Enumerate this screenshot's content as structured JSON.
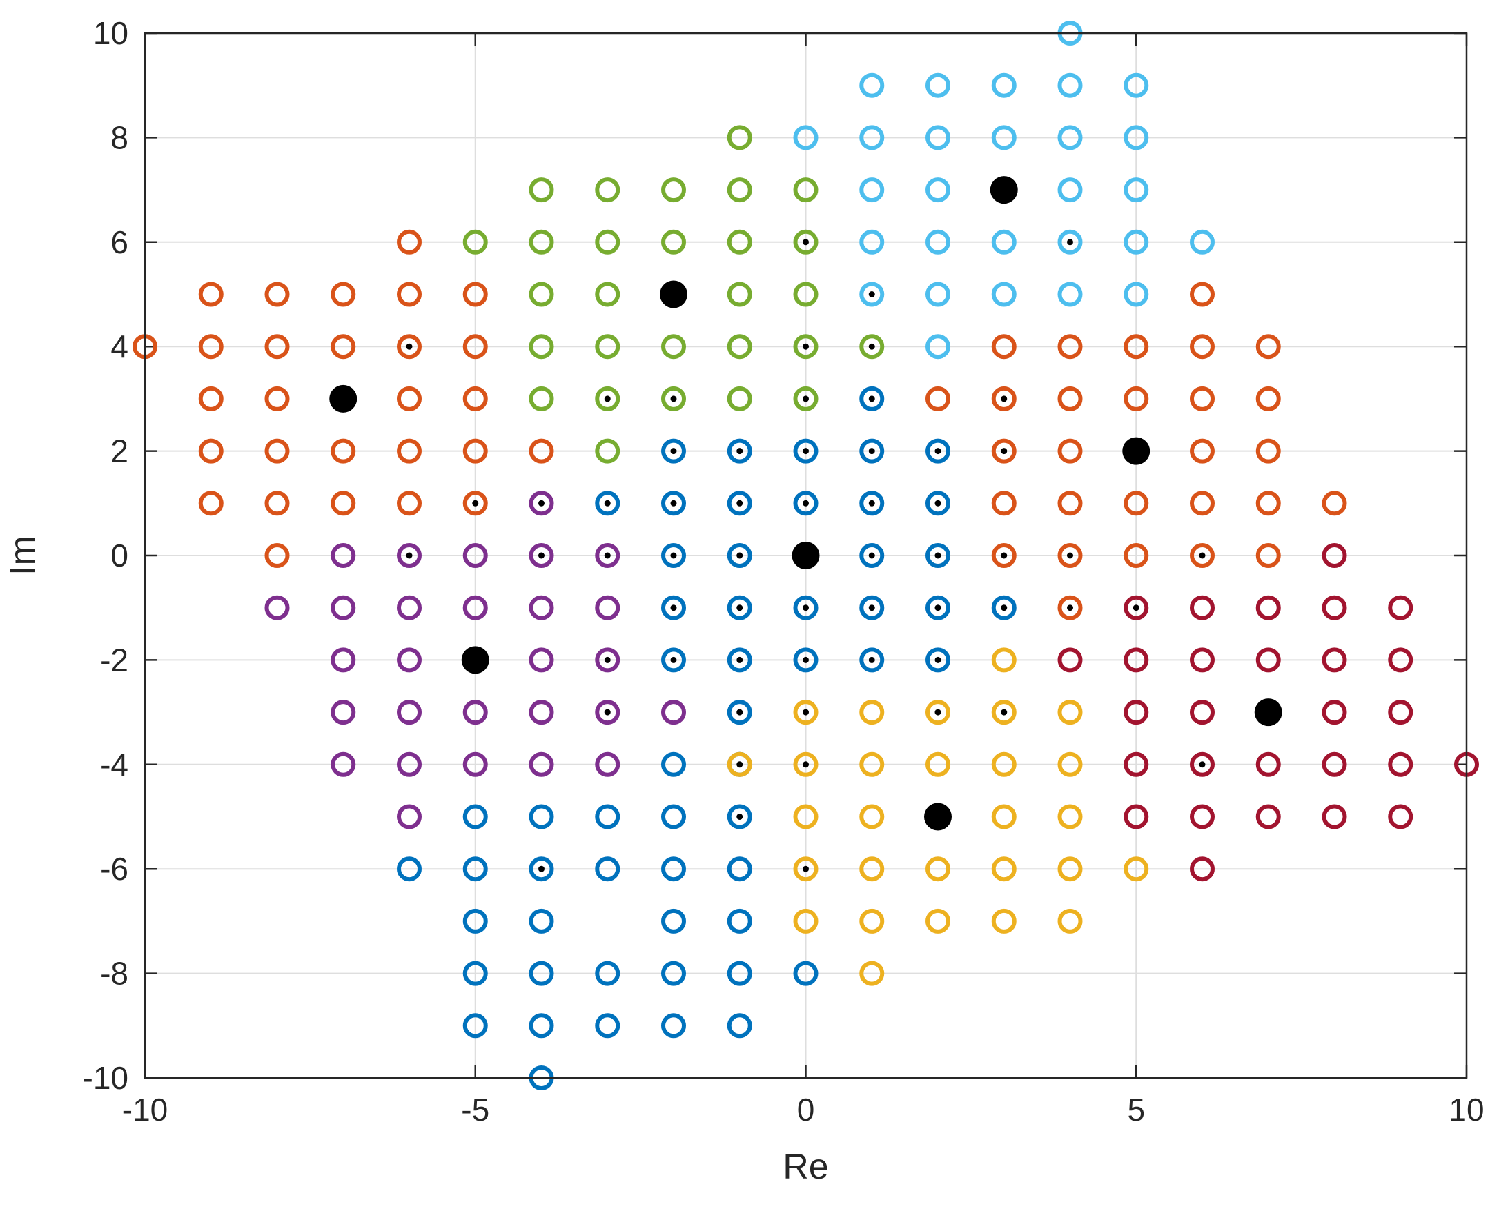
{
  "chart_data": {
    "type": "scatter",
    "title": "",
    "xlabel": "Re",
    "ylabel": "Im",
    "xlim": [
      -10,
      10
    ],
    "ylim": [
      -10,
      10
    ],
    "xticks": [
      -10,
      -5,
      0,
      5,
      10
    ],
    "yticks": [
      -10,
      -8,
      -6,
      -4,
      -2,
      0,
      2,
      4,
      6,
      8,
      10
    ],
    "grid": true,
    "marker_style": "open circle",
    "center_dot_meaning": "points marked with a small black center dot",
    "series": [
      {
        "name": "blue region",
        "color": "#0072bd",
        "points": [
          [
            0,
            2
          ],
          [
            0,
            1
          ],
          [
            0,
            -1
          ],
          [
            0,
            -2
          ],
          [
            1,
            3
          ],
          [
            1,
            2
          ],
          [
            1,
            1
          ],
          [
            1,
            0
          ],
          [
            1,
            -1
          ],
          [
            1,
            -2
          ],
          [
            2,
            2
          ],
          [
            2,
            1
          ],
          [
            2,
            0
          ],
          [
            2,
            -1
          ],
          [
            2,
            -2
          ],
          [
            3,
            -1
          ],
          [
            -1,
            2
          ],
          [
            -1,
            1
          ],
          [
            -1,
            0
          ],
          [
            -1,
            -1
          ],
          [
            -1,
            -2
          ],
          [
            -1,
            -3
          ],
          [
            -1,
            -4
          ],
          [
            -1,
            -5
          ],
          [
            -1,
            -6
          ],
          [
            -1,
            -7
          ],
          [
            -1,
            -8
          ],
          [
            -1,
            -9
          ],
          [
            -2,
            2
          ],
          [
            -2,
            1
          ],
          [
            -2,
            0
          ],
          [
            -2,
            -1
          ],
          [
            -2,
            -2
          ],
          [
            -2,
            -4
          ],
          [
            -2,
            -5
          ],
          [
            -2,
            -6
          ],
          [
            -2,
            -7
          ],
          [
            -2,
            -8
          ],
          [
            -2,
            -9
          ],
          [
            -3,
            1
          ],
          [
            -3,
            -5
          ],
          [
            -3,
            -6
          ],
          [
            -3,
            -8
          ],
          [
            -3,
            -9
          ],
          [
            -4,
            -5
          ],
          [
            -4,
            -6
          ],
          [
            -4,
            -7
          ],
          [
            -4,
            -8
          ],
          [
            -4,
            -9
          ],
          [
            -4,
            -10
          ],
          [
            -5,
            -5
          ],
          [
            -5,
            -6
          ],
          [
            -5,
            -7
          ],
          [
            -5,
            -8
          ],
          [
            -5,
            -9
          ],
          [
            -6,
            -6
          ],
          [
            0,
            -8
          ]
        ],
        "dotted": [
          [
            0,
            2
          ],
          [
            0,
            1
          ],
          [
            0,
            -1
          ],
          [
            0,
            -2
          ],
          [
            1,
            3
          ],
          [
            1,
            2
          ],
          [
            1,
            1
          ],
          [
            1,
            0
          ],
          [
            1,
            -1
          ],
          [
            1,
            -2
          ],
          [
            2,
            2
          ],
          [
            2,
            1
          ],
          [
            2,
            0
          ],
          [
            2,
            -1
          ],
          [
            2,
            -2
          ],
          [
            3,
            -1
          ],
          [
            -1,
            2
          ],
          [
            -1,
            1
          ],
          [
            -1,
            0
          ],
          [
            -1,
            -1
          ],
          [
            -1,
            -2
          ],
          [
            -1,
            -3
          ],
          [
            -1,
            -5
          ],
          [
            -2,
            2
          ],
          [
            -2,
            1
          ],
          [
            -2,
            0
          ],
          [
            -2,
            -1
          ],
          [
            -2,
            -2
          ],
          [
            -3,
            1
          ],
          [
            -4,
            -6
          ]
        ],
        "center": [
          0,
          0
        ]
      },
      {
        "name": "orange region",
        "color": "#d95319",
        "points": [
          [
            -10,
            4
          ],
          [
            -9,
            5
          ],
          [
            -9,
            4
          ],
          [
            -9,
            3
          ],
          [
            -9,
            2
          ],
          [
            -9,
            1
          ],
          [
            -8,
            5
          ],
          [
            -8,
            4
          ],
          [
            -8,
            3
          ],
          [
            -8,
            2
          ],
          [
            -8,
            1
          ],
          [
            -8,
            0
          ],
          [
            -7,
            5
          ],
          [
            -7,
            4
          ],
          [
            -7,
            2
          ],
          [
            -7,
            1
          ],
          [
            -6,
            6
          ],
          [
            -6,
            5
          ],
          [
            -6,
            4
          ],
          [
            -6,
            3
          ],
          [
            -6,
            2
          ],
          [
            -6,
            1
          ],
          [
            -5,
            5
          ],
          [
            -5,
            4
          ],
          [
            -5,
            3
          ],
          [
            -5,
            2
          ],
          [
            -5,
            1
          ],
          [
            -4,
            2
          ],
          [
            2,
            3
          ],
          [
            3,
            4
          ],
          [
            3,
            3
          ],
          [
            3,
            2
          ],
          [
            3,
            1
          ],
          [
            3,
            0
          ],
          [
            4,
            4
          ],
          [
            4,
            3
          ],
          [
            4,
            2
          ],
          [
            4,
            1
          ],
          [
            4,
            0
          ],
          [
            4,
            -1
          ],
          [
            5,
            4
          ],
          [
            5,
            3
          ],
          [
            5,
            1
          ],
          [
            5,
            0
          ],
          [
            6,
            5
          ],
          [
            6,
            4
          ],
          [
            6,
            3
          ],
          [
            6,
            2
          ],
          [
            6,
            1
          ],
          [
            6,
            0
          ],
          [
            7,
            4
          ],
          [
            7,
            3
          ],
          [
            7,
            2
          ],
          [
            7,
            1
          ],
          [
            7,
            0
          ],
          [
            8,
            1
          ]
        ],
        "dotted": [
          [
            -6,
            4
          ],
          [
            -5,
            1
          ],
          [
            3,
            3
          ],
          [
            3,
            2
          ],
          [
            3,
            0
          ],
          [
            4,
            0
          ],
          [
            4,
            -1
          ],
          [
            6,
            0
          ]
        ],
        "centers": [
          [
            -7,
            3
          ],
          [
            5,
            2
          ]
        ]
      },
      {
        "name": "yellow region",
        "color": "#edb120",
        "points": [
          [
            0,
            -3
          ],
          [
            0,
            -4
          ],
          [
            0,
            -5
          ],
          [
            0,
            -6
          ],
          [
            0,
            -7
          ],
          [
            1,
            -3
          ],
          [
            1,
            -4
          ],
          [
            1,
            -5
          ],
          [
            1,
            -6
          ],
          [
            1,
            -7
          ],
          [
            1,
            -8
          ],
          [
            2,
            -3
          ],
          [
            2,
            -4
          ],
          [
            2,
            -6
          ],
          [
            2,
            -7
          ],
          [
            3,
            -2
          ],
          [
            3,
            -3
          ],
          [
            3,
            -4
          ],
          [
            3,
            -5
          ],
          [
            3,
            -6
          ],
          [
            3,
            -7
          ],
          [
            4,
            -3
          ],
          [
            4,
            -4
          ],
          [
            4,
            -5
          ],
          [
            4,
            -6
          ],
          [
            4,
            -7
          ],
          [
            5,
            -6
          ],
          [
            -1,
            -4
          ]
        ],
        "dotted": [
          [
            0,
            -3
          ],
          [
            0,
            -4
          ],
          [
            0,
            -6
          ],
          [
            2,
            -3
          ],
          [
            3,
            -3
          ],
          [
            -1,
            -4
          ]
        ],
        "center": [
          2,
          -5
        ]
      },
      {
        "name": "purple region",
        "color": "#7e2f8e",
        "points": [
          [
            -4,
            1
          ],
          [
            -4,
            0
          ],
          [
            -4,
            -1
          ],
          [
            -4,
            -2
          ],
          [
            -4,
            -3
          ],
          [
            -4,
            -4
          ],
          [
            -3,
            0
          ],
          [
            -3,
            -1
          ],
          [
            -3,
            -2
          ],
          [
            -3,
            -3
          ],
          [
            -3,
            -4
          ],
          [
            -2,
            -3
          ],
          [
            -5,
            0
          ],
          [
            -5,
            -1
          ],
          [
            -5,
            -3
          ],
          [
            -5,
            -4
          ],
          [
            -6,
            0
          ],
          [
            -6,
            -1
          ],
          [
            -6,
            -2
          ],
          [
            -6,
            -3
          ],
          [
            -6,
            -4
          ],
          [
            -6,
            -5
          ],
          [
            -7,
            0
          ],
          [
            -7,
            -1
          ],
          [
            -7,
            -2
          ],
          [
            -7,
            -3
          ],
          [
            -7,
            -4
          ],
          [
            -8,
            -1
          ]
        ],
        "dotted": [
          [
            -4,
            1
          ],
          [
            -4,
            0
          ],
          [
            -3,
            0
          ],
          [
            -3,
            -2
          ],
          [
            -3,
            -3
          ],
          [
            -6,
            0
          ]
        ],
        "center": [
          -5,
          -2
        ]
      },
      {
        "name": "green region",
        "color": "#77ac30",
        "points": [
          [
            -1,
            8
          ],
          [
            -1,
            7
          ],
          [
            -1,
            6
          ],
          [
            -1,
            5
          ],
          [
            -1,
            4
          ],
          [
            -1,
            3
          ],
          [
            0,
            7
          ],
          [
            0,
            6
          ],
          [
            0,
            5
          ],
          [
            0,
            4
          ],
          [
            0,
            3
          ],
          [
            1,
            4
          ],
          [
            -2,
            7
          ],
          [
            -2,
            6
          ],
          [
            -2,
            4
          ],
          [
            -2,
            3
          ],
          [
            -3,
            7
          ],
          [
            -3,
            6
          ],
          [
            -3,
            5
          ],
          [
            -3,
            4
          ],
          [
            -3,
            3
          ],
          [
            -3,
            2
          ],
          [
            -4,
            7
          ],
          [
            -4,
            6
          ],
          [
            -4,
            5
          ],
          [
            -4,
            4
          ],
          [
            -4,
            3
          ],
          [
            -5,
            6
          ]
        ],
        "dotted": [
          [
            0,
            6
          ],
          [
            0,
            4
          ],
          [
            0,
            3
          ],
          [
            1,
            4
          ],
          [
            -2,
            3
          ],
          [
            -3,
            3
          ]
        ],
        "center": [
          -2,
          5
        ]
      },
      {
        "name": "cyan region",
        "color": "#4dbeee",
        "points": [
          [
            0,
            8
          ],
          [
            1,
            9
          ],
          [
            1,
            8
          ],
          [
            1,
            7
          ],
          [
            1,
            6
          ],
          [
            1,
            5
          ],
          [
            2,
            9
          ],
          [
            2,
            8
          ],
          [
            2,
            7
          ],
          [
            2,
            6
          ],
          [
            2,
            5
          ],
          [
            2,
            4
          ],
          [
            3,
            9
          ],
          [
            3,
            8
          ],
          [
            3,
            6
          ],
          [
            3,
            5
          ],
          [
            4,
            10
          ],
          [
            4,
            9
          ],
          [
            4,
            8
          ],
          [
            4,
            7
          ],
          [
            4,
            6
          ],
          [
            4,
            5
          ],
          [
            5,
            9
          ],
          [
            5,
            8
          ],
          [
            5,
            7
          ],
          [
            5,
            6
          ],
          [
            5,
            5
          ],
          [
            6,
            6
          ]
        ],
        "dotted": [
          [
            1,
            5
          ],
          [
            4,
            6
          ]
        ],
        "center": [
          3,
          7
        ]
      },
      {
        "name": "dark red region",
        "color": "#a2142f",
        "points": [
          [
            4,
            -2
          ],
          [
            5,
            -1
          ],
          [
            5,
            -2
          ],
          [
            5,
            -3
          ],
          [
            5,
            -4
          ],
          [
            5,
            -5
          ],
          [
            6,
            -1
          ],
          [
            6,
            -2
          ],
          [
            6,
            -3
          ],
          [
            6,
            -4
          ],
          [
            6,
            -5
          ],
          [
            6,
            -6
          ],
          [
            7,
            -1
          ],
          [
            7,
            -2
          ],
          [
            7,
            -4
          ],
          [
            7,
            -5
          ],
          [
            8,
            0
          ],
          [
            8,
            -1
          ],
          [
            8,
            -2
          ],
          [
            8,
            -3
          ],
          [
            8,
            -4
          ],
          [
            8,
            -5
          ],
          [
            9,
            -1
          ],
          [
            9,
            -2
          ],
          [
            9,
            -3
          ],
          [
            9,
            -4
          ],
          [
            9,
            -5
          ],
          [
            10,
            -4
          ]
        ],
        "dotted": [
          [
            5,
            -1
          ],
          [
            6,
            -4
          ]
        ],
        "center": [
          7,
          -3
        ]
      }
    ]
  }
}
